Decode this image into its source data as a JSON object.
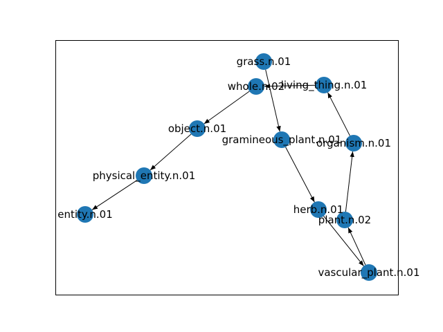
{
  "graph": {
    "node_color": "#1f77b4",
    "edge_color": "#000000",
    "background": "#ffffff",
    "nodes": [
      {
        "id": "grass",
        "label": "grass.n.01"
      },
      {
        "id": "whole",
        "label": "whole.n.02"
      },
      {
        "id": "living_thing",
        "label": "living_thing.n.01"
      },
      {
        "id": "object",
        "label": "object.n.01"
      },
      {
        "id": "gramineous_plant",
        "label": "gramineous_plant.n.01"
      },
      {
        "id": "organism",
        "label": "organism.n.01"
      },
      {
        "id": "physical_entity",
        "label": "physical_entity.n.01"
      },
      {
        "id": "entity",
        "label": "entity.n.01"
      },
      {
        "id": "herb",
        "label": "herb.n.01"
      },
      {
        "id": "plant",
        "label": "plant.n.02"
      },
      {
        "id": "vascular_plant",
        "label": "vascular_plant.n.01"
      }
    ],
    "edges": [
      {
        "from": "grass",
        "to": "gramineous_plant"
      },
      {
        "from": "gramineous_plant",
        "to": "herb"
      },
      {
        "from": "herb",
        "to": "vascular_plant"
      },
      {
        "from": "vascular_plant",
        "to": "plant"
      },
      {
        "from": "plant",
        "to": "organism"
      },
      {
        "from": "organism",
        "to": "living_thing"
      },
      {
        "from": "living_thing",
        "to": "whole"
      },
      {
        "from": "whole",
        "to": "object"
      },
      {
        "from": "object",
        "to": "physical_entity"
      },
      {
        "from": "physical_entity",
        "to": "entity"
      }
    ]
  }
}
